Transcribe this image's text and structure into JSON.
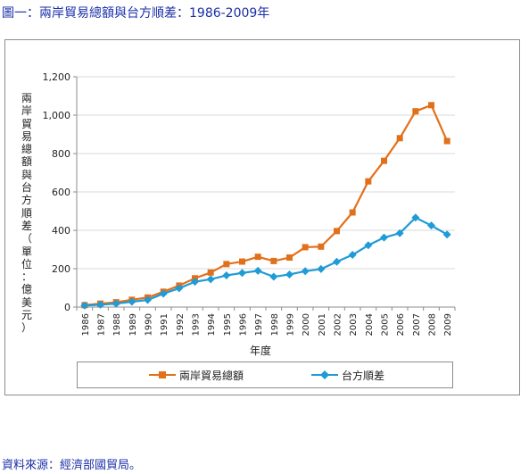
{
  "page": {
    "title": "圖一：兩岸貿易總額與台方順差：1986-2009年",
    "source": "資料來源：經濟部國貿局。"
  },
  "colors": {
    "title_text": "#1a2fa8",
    "series_total": "#e2701b",
    "series_surplus": "#1f9bd6",
    "grid": "#d9d9d9",
    "axis": "#8c8c8c"
  },
  "chart_data": {
    "type": "line",
    "title": "",
    "xlabel": "年度",
    "ylabel": "兩岸貿易總額與台方順差（單位：億美元）",
    "ylim": [
      0,
      1200
    ],
    "yticks": [
      "0",
      "200",
      "400",
      "600",
      "800",
      "1,000",
      "1,200"
    ],
    "ytick_values": [
      0,
      200,
      400,
      600,
      800,
      1000,
      1200
    ],
    "grid": "horizontal",
    "legend_position": "bottom",
    "categories": [
      "1986",
      "1987",
      "1988",
      "1989",
      "1990",
      "1991",
      "1992",
      "1993",
      "1994",
      "1995",
      "1996",
      "1997",
      "1998",
      "1999",
      "2000",
      "2001",
      "2002",
      "2003",
      "2004",
      "2005",
      "2006",
      "2007",
      "2008",
      "2009"
    ],
    "series": [
      {
        "name": "兩岸貿易總額",
        "marker": "square",
        "values": [
          10,
          18,
          25,
          38,
          50,
          80,
          112,
          150,
          180,
          224,
          237,
          262,
          240,
          258,
          312,
          315,
          396,
          493,
          655,
          762,
          880,
          1020,
          1052,
          865
        ]
      },
      {
        "name": "台方順差",
        "marker": "diamond",
        "values": [
          8,
          12,
          18,
          28,
          37,
          70,
          98,
          132,
          145,
          165,
          178,
          189,
          158,
          170,
          187,
          198,
          236,
          272,
          322,
          362,
          385,
          466,
          425,
          378
        ]
      }
    ]
  }
}
